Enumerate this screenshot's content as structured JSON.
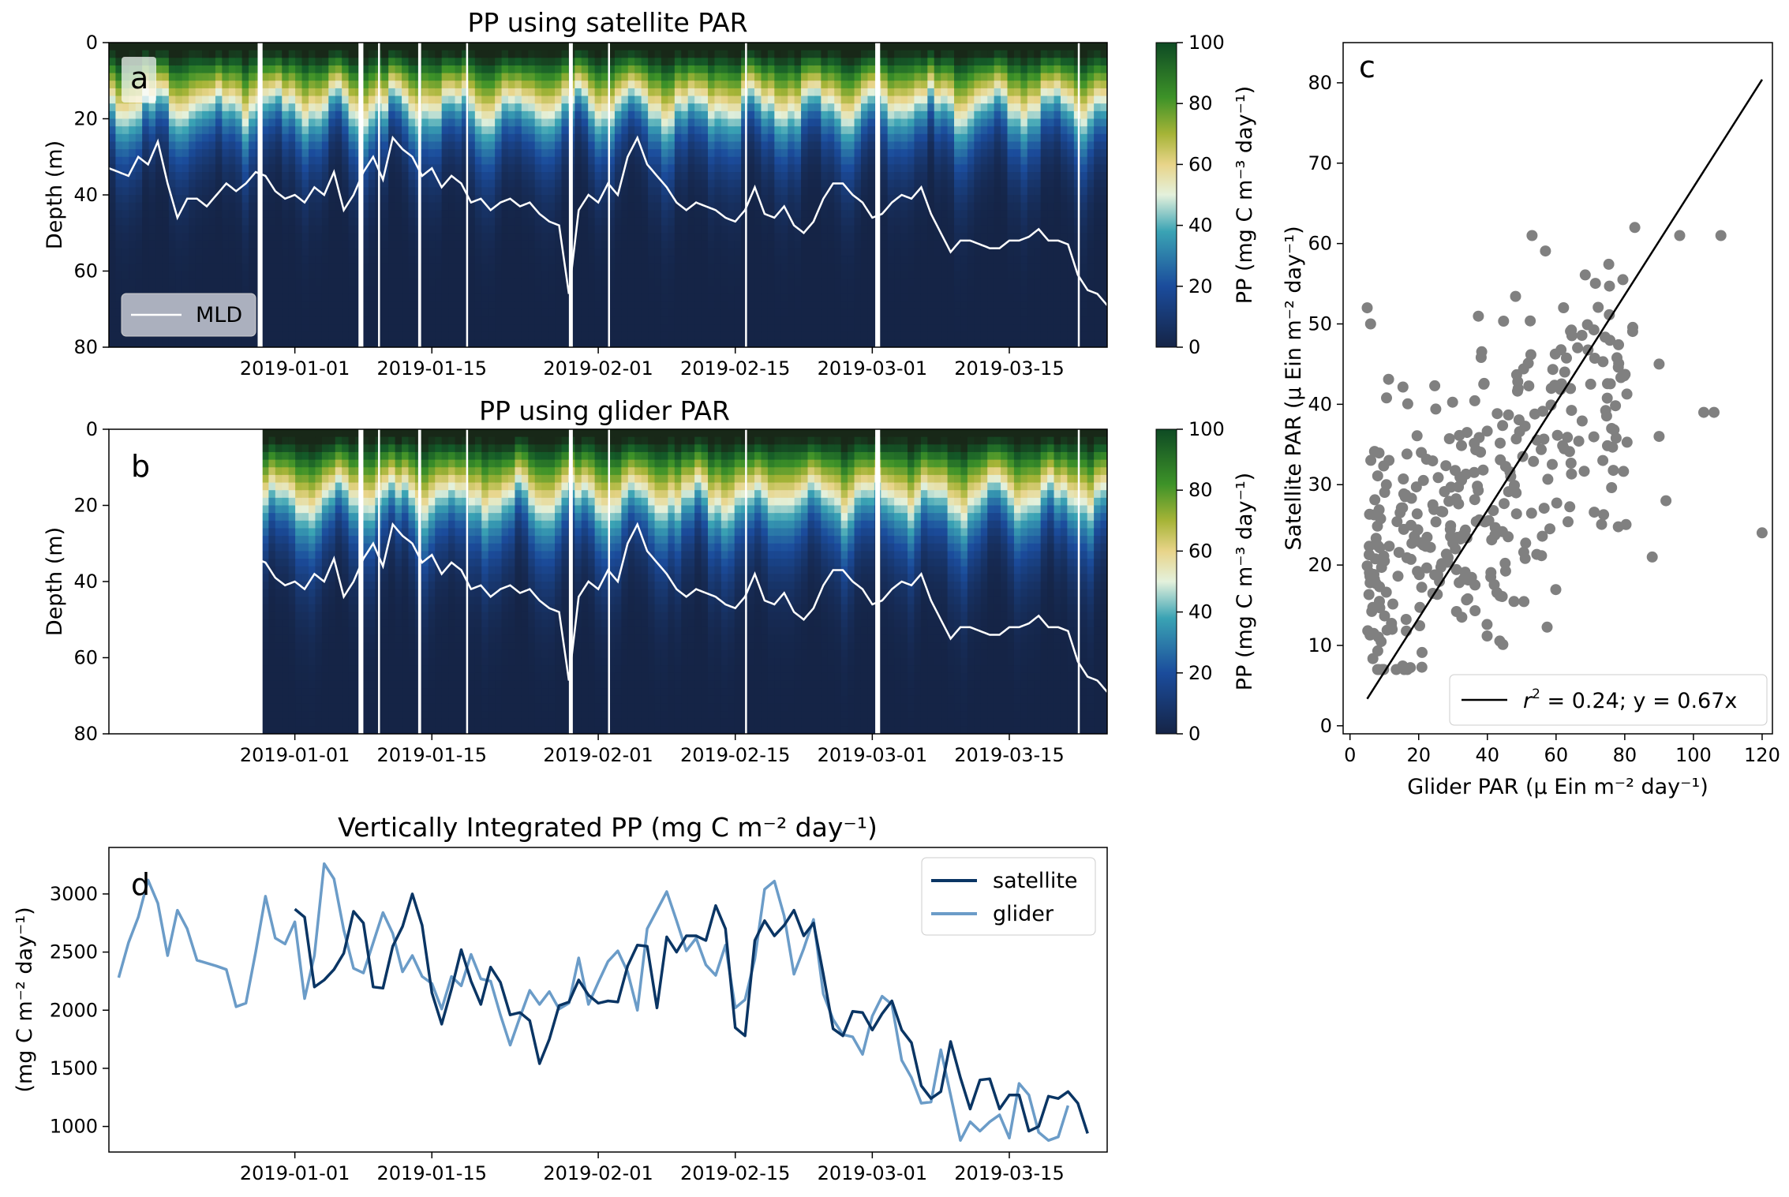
{
  "chart_data": [
    {
      "panel": "a",
      "type": "heatmap",
      "title": "PP using satellite PAR",
      "ylabel": "Depth (m)",
      "ylim": [
        80,
        0
      ],
      "yticks": [
        0,
        20,
        40,
        60,
        80
      ],
      "xtick_labels": [
        "2019-01-01",
        "2019-01-15",
        "2019-02-01",
        "2019-02-15",
        "2019-03-01",
        "2019-03-15"
      ],
      "x_range_days": [
        -19,
        83
      ],
      "colorbar": {
        "label": "PP (mg C m⁻³ day⁻¹)",
        "range": [
          0,
          100
        ],
        "ticks": [
          0,
          20,
          40,
          60,
          80,
          100
        ]
      },
      "legend": {
        "entries": [
          "MLD"
        ],
        "placement": "lower-left"
      },
      "mld_line_color": "#ffffff"
    },
    {
      "panel": "b",
      "type": "heatmap",
      "title": "PP using glider PAR",
      "ylabel": "Depth (m)",
      "ylim": [
        80,
        0
      ],
      "yticks": [
        0,
        20,
        40,
        60,
        80
      ],
      "xtick_labels": [
        "2019-01-01",
        "2019-01-15",
        "2019-02-01",
        "2019-02-15",
        "2019-03-01",
        "2019-03-15"
      ],
      "x_range_days": [
        -19,
        83
      ],
      "data_start_day": -3.5,
      "colorbar": {
        "label": "PP (mg C m⁻³ day⁻¹)",
        "range": [
          0,
          100
        ],
        "ticks": [
          0,
          20,
          40,
          60,
          80,
          100
        ]
      },
      "mld_line_color": "#ffffff"
    },
    {
      "panel": "c",
      "type": "scatter",
      "xlabel": "Glider PAR (μ Ein m⁻² day⁻¹)",
      "ylabel": "Satellite PAR (μ Ein m⁻² day⁻¹)",
      "xlim": [
        -2,
        123
      ],
      "ylim": [
        -1,
        85
      ],
      "xticks": [
        0,
        20,
        40,
        60,
        80,
        100,
        120
      ],
      "yticks": [
        0,
        10,
        20,
        30,
        40,
        50,
        60,
        70,
        80
      ],
      "fit_line": {
        "slope": 0.67,
        "x_range": [
          5,
          120
        ],
        "label": "r² = 0.24; y = 0.67x"
      },
      "point_color": "#808080",
      "legend": {
        "placement": "lower-right"
      }
    },
    {
      "panel": "d",
      "type": "line",
      "title": "Vertically Integrated PP (mg C m⁻² day⁻¹)",
      "ylabel": "(mg C m⁻² day⁻¹)",
      "ylim": [
        780,
        3400
      ],
      "yticks": [
        1000,
        1500,
        2000,
        2500,
        3000
      ],
      "xtick_labels": [
        "2019-01-01",
        "2019-01-15",
        "2019-02-01",
        "2019-02-15",
        "2019-03-01",
        "2019-03-15"
      ],
      "x_range_days": [
        -19,
        83
      ],
      "legend": {
        "placement": "upper-right"
      },
      "series": [
        {
          "name": "satellite",
          "color": "#0a3564"
        },
        {
          "name": "glider",
          "color": "#6b9cc8"
        }
      ]
    }
  ],
  "labels": {
    "a": "a",
    "b": "b",
    "c": "c",
    "d": "d",
    "mld": "MLD",
    "fit_r2": "r",
    "fit_r2_sup": "2",
    "fit_rest": " = 0.24; y = 0.67x",
    "satellite": "satellite",
    "glider": "glider"
  }
}
